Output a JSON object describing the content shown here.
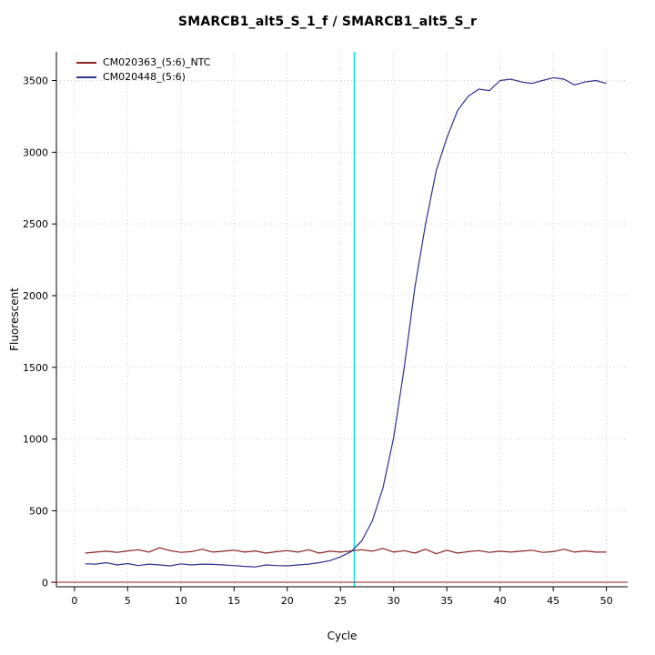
{
  "chart_data": {
    "type": "line",
    "title": "SMARCB1_alt5_S_1_f / SMARCB1_alt5_S_r",
    "xlabel": "Cycle",
    "ylabel": "Fluorescent",
    "xlim": [
      -1.7,
      52
    ],
    "ylim": [
      -30,
      3700
    ],
    "x_ticks": [
      0,
      5,
      10,
      15,
      20,
      25,
      30,
      35,
      40,
      45,
      50
    ],
    "y_ticks": [
      0,
      500,
      1000,
      1500,
      2000,
      2500,
      3000,
      3500
    ],
    "grid": "dotted",
    "grid_color": "#c9c9c9",
    "legend_position": "top-left",
    "threshold_cycle": 26.3,
    "threshold_color": "#00e5e5",
    "baseline": {
      "y": 2,
      "color": "#8b2323"
    },
    "series": [
      {
        "name": "CM020363_(5:6)_NTC",
        "color": "#8b2323",
        "x": [
          1,
          2,
          3,
          4,
          5,
          6,
          7,
          8,
          9,
          10,
          11,
          12,
          13,
          14,
          15,
          16,
          17,
          18,
          19,
          20,
          21,
          22,
          23,
          24,
          25,
          26,
          27,
          28,
          29,
          30,
          31,
          32,
          33,
          34,
          35,
          36,
          37,
          38,
          39,
          40,
          41,
          42,
          43,
          44,
          45,
          46,
          47,
          48,
          49,
          50
        ],
        "values": [
          205,
          212,
          218,
          210,
          220,
          228,
          212,
          242,
          222,
          210,
          215,
          232,
          212,
          218,
          225,
          212,
          220,
          205,
          215,
          222,
          212,
          228,
          205,
          218,
          212,
          220,
          228,
          218,
          238,
          212,
          222,
          205,
          232,
          200,
          225,
          205,
          215,
          222,
          210,
          218,
          212,
          218,
          225,
          210,
          215,
          232,
          212,
          220,
          212,
          212
        ]
      },
      {
        "name": "CM020448_(5:6)",
        "color": "#30308f",
        "x": [
          1,
          2,
          3,
          4,
          5,
          6,
          7,
          8,
          9,
          10,
          11,
          12,
          13,
          14,
          15,
          16,
          17,
          18,
          19,
          20,
          21,
          22,
          23,
          24,
          25,
          26,
          27,
          28,
          29,
          30,
          31,
          32,
          33,
          34,
          35,
          36,
          37,
          38,
          39,
          40,
          41,
          42,
          43,
          44,
          45,
          46,
          47,
          48,
          49,
          50
        ],
        "values": [
          130,
          128,
          138,
          122,
          132,
          118,
          128,
          122,
          116,
          130,
          122,
          128,
          126,
          122,
          118,
          112,
          108,
          122,
          118,
          116,
          122,
          128,
          138,
          152,
          178,
          215,
          290,
          430,
          660,
          1010,
          1500,
          2060,
          2500,
          2870,
          3100,
          3290,
          3390,
          3440,
          3430,
          3500,
          3510,
          3490,
          3480,
          3500,
          3520,
          3510,
          3470,
          3490,
          3500,
          3480
        ]
      }
    ]
  }
}
